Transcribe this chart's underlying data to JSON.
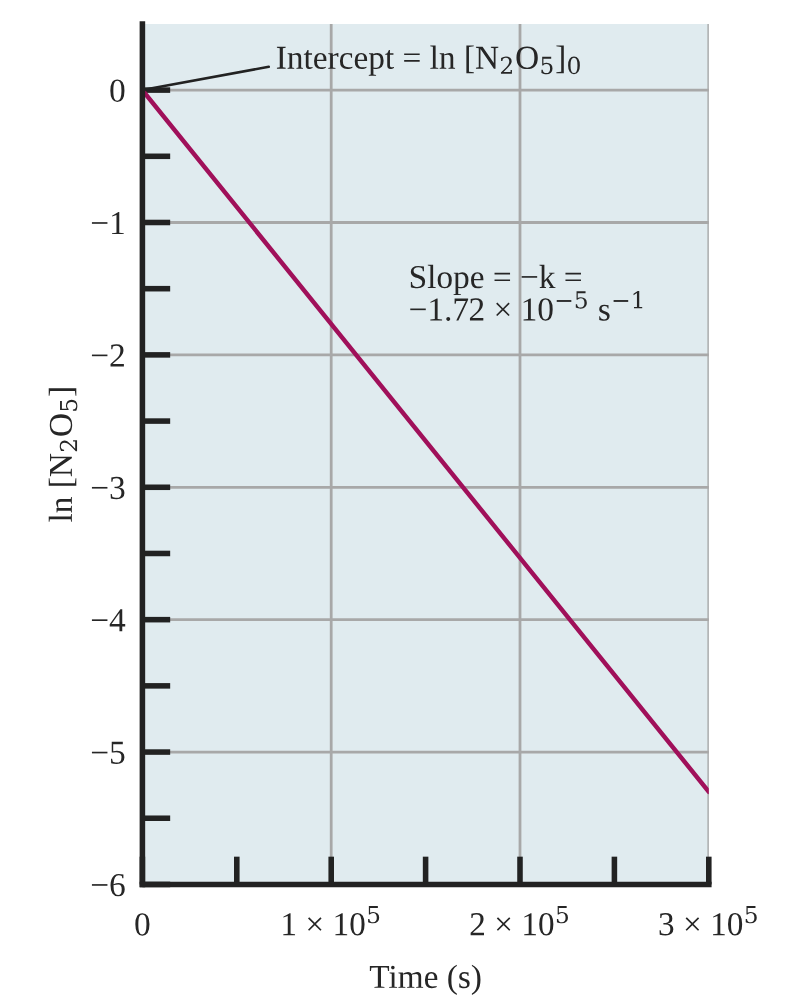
{
  "chart_data": {
    "type": "line",
    "xlabel": "Time (s)",
    "ylabel": "ln [N$_{2}$O$_{5}$]",
    "x": [
      0,
      300000
    ],
    "series": [
      {
        "color": "#a0105a",
        "values": [
          0,
          -5.3
        ]
      }
    ],
    "xlim": [
      0,
      300000
    ],
    "ylim": [
      -6,
      0.5
    ],
    "xticks": [
      0,
      {
        "value": 50000,
        "label": null
      },
      {
        "value": 100000,
        "label": "1 × 10$^{5}$"
      },
      {
        "value": 150000,
        "label": null
      },
      {
        "value": 200000,
        "label": "2 × 10$^{5}$"
      },
      {
        "value": 250000,
        "label": null
      },
      {
        "value": 300000,
        "label": "3 × 10$^{5}$"
      }
    ],
    "yticks": [
      0,
      {
        "value": -0.5,
        "label": null
      },
      -1,
      {
        "value": -1.5,
        "label": null
      },
      -2,
      {
        "value": -2.5,
        "label": null
      },
      -3,
      {
        "value": -3.5,
        "label": null
      },
      -4,
      {
        "value": -4.5,
        "label": null
      },
      -5,
      {
        "value": -5.5,
        "label": null
      },
      -6
    ],
    "grid": true,
    "annotations": [
      {
        "text": "Intercept = ln [N$_{2}$O$_{5}$]$_{0}$",
        "x": 0,
        "y": 0
      },
      "Slope = −k =\n−1.72 × 10$^{−5}$ s$^{−1}$"
    ]
  }
}
